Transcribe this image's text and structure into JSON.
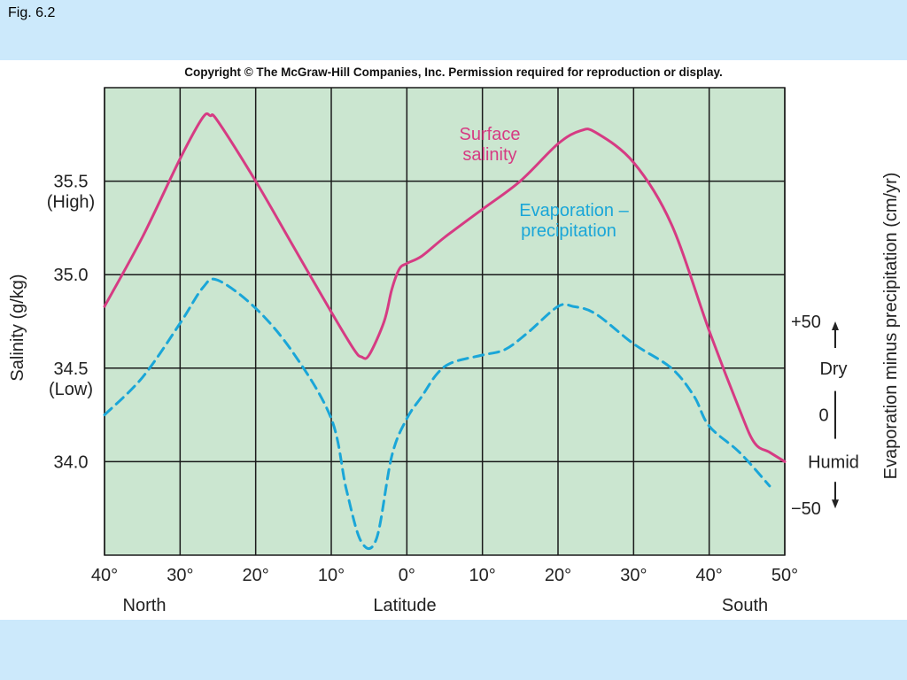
{
  "fig_label": "Fig. 6.2",
  "copyright": "Copyright © The McGraw-Hill Companies, Inc. Permission required for reproduction or display.",
  "colors": {
    "plot_bg": "#cbe6d0",
    "salinity": "#d63b83",
    "evaporation": "#1aa6d8",
    "grid": "#1a1a1a",
    "page_bg": "#cce9fb"
  },
  "chart_data": {
    "type": "line",
    "xlabel": "Latitude",
    "x_direction_labels": {
      "left": "North",
      "right": "South"
    },
    "x_ticks": [
      "40°",
      "30°",
      "20°",
      "10°",
      "0°",
      "10°",
      "20°",
      "30°",
      "40°",
      "50°"
    ],
    "x_note": "x values: positive = degrees North, negative = degrees South",
    "xlim": [
      40,
      -50
    ],
    "left_axis": {
      "label": "Salinity (g/kg)",
      "ylim": [
        33.5,
        36.0
      ],
      "ticks": [
        {
          "value": 35.5,
          "line1": "35.5",
          "line2": "(High)"
        },
        {
          "value": 35.0,
          "line1": "35.0",
          "line2": ""
        },
        {
          "value": 34.5,
          "line1": "34.5",
          "line2": "(Low)"
        },
        {
          "value": 34.0,
          "line1": "34.0",
          "line2": ""
        }
      ]
    },
    "right_axis": {
      "label": "Evaporation minus precipitation (cm/yr)",
      "ylim": [
        -75,
        175
      ],
      "ticks": [
        {
          "value": 50,
          "label": "+50"
        },
        {
          "value": 0,
          "label": "0"
        },
        {
          "value": -50,
          "label": "−50"
        }
      ],
      "annotations": {
        "upper": "Dry",
        "lower": "Humid"
      }
    },
    "grid": true,
    "series": [
      {
        "name_lines": [
          "Surface",
          "salinity"
        ],
        "axis": "left",
        "style": "solid",
        "points": [
          [
            40,
            34.83
          ],
          [
            35,
            35.2
          ],
          [
            30,
            35.62
          ],
          [
            27,
            35.84
          ],
          [
            26,
            35.85
          ],
          [
            25,
            35.82
          ],
          [
            20,
            35.5
          ],
          [
            15,
            35.15
          ],
          [
            10,
            34.8
          ],
          [
            7,
            34.6
          ],
          [
            6,
            34.56
          ],
          [
            5,
            34.57
          ],
          [
            3,
            34.75
          ],
          [
            2,
            34.92
          ],
          [
            1,
            35.03
          ],
          [
            0,
            35.06
          ],
          [
            -2,
            35.1
          ],
          [
            -5,
            35.2
          ],
          [
            -10,
            35.35
          ],
          [
            -15,
            35.5
          ],
          [
            -20,
            35.7
          ],
          [
            -23,
            35.77
          ],
          [
            -25,
            35.76
          ],
          [
            -30,
            35.6
          ],
          [
            -35,
            35.27
          ],
          [
            -40,
            34.7
          ],
          [
            -44,
            34.28
          ],
          [
            -46,
            34.1
          ],
          [
            -48,
            34.05
          ],
          [
            -50,
            34.0
          ]
        ]
      },
      {
        "name_lines": [
          "Evaporation –",
          "precipitation"
        ],
        "axis": "right",
        "style": "dashed",
        "points": [
          [
            40,
            0
          ],
          [
            35,
            20
          ],
          [
            30,
            49
          ],
          [
            27,
            68
          ],
          [
            25,
            72
          ],
          [
            20,
            57
          ],
          [
            15,
            33
          ],
          [
            10,
            -2
          ],
          [
            8,
            -40
          ],
          [
            6,
            -68
          ],
          [
            4,
            -66
          ],
          [
            2,
            -22
          ],
          [
            0,
            -2
          ],
          [
            -2,
            10
          ],
          [
            -4,
            22
          ],
          [
            -6,
            28
          ],
          [
            -10,
            32
          ],
          [
            -13,
            35
          ],
          [
            -16,
            44
          ],
          [
            -20,
            58
          ],
          [
            -22,
            58
          ],
          [
            -25,
            54
          ],
          [
            -30,
            38
          ],
          [
            -35,
            25
          ],
          [
            -38,
            10
          ],
          [
            -40,
            -6
          ],
          [
            -44,
            -20
          ],
          [
            -48,
            -38
          ]
        ]
      }
    ]
  }
}
